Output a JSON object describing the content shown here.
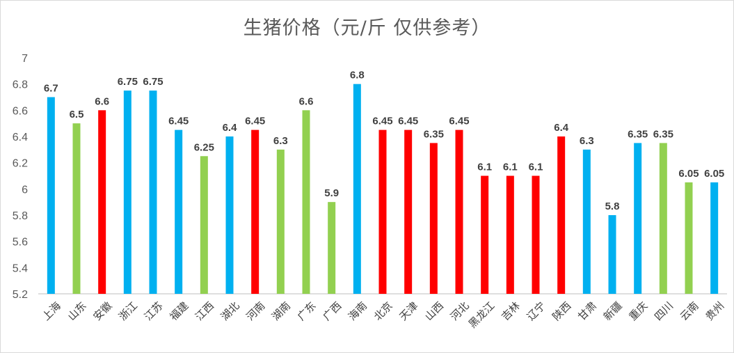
{
  "chart_data": {
    "type": "bar",
    "title": "生猪价格（元/斤 仅供参考）",
    "xlabel": "",
    "ylabel": "",
    "ylim": [
      5.2,
      7
    ],
    "yticks": [
      5.2,
      5.4,
      5.6,
      5.8,
      6,
      6.2,
      6.4,
      6.6,
      6.8,
      7
    ],
    "ytick_labels": [
      "5.2",
      "5.4",
      "5.6",
      "5.8",
      "6",
      "6.2",
      "6.4",
      "6.6",
      "6.8",
      "7"
    ],
    "grid": false,
    "categories": [
      "上海",
      "山东",
      "安徽",
      "浙江",
      "江苏",
      "福建",
      "江西",
      "湖北",
      "河南",
      "湖南",
      "广东",
      "广西",
      "海南",
      "北京",
      "天津",
      "山西",
      "河北",
      "黑龙江",
      "吉林",
      "辽宁",
      "陕西",
      "甘肃",
      "新疆",
      "重庆",
      "四川",
      "云南",
      "贵州"
    ],
    "values": [
      6.7,
      6.5,
      6.6,
      6.75,
      6.75,
      6.45,
      6.25,
      6.4,
      6.45,
      6.3,
      6.6,
      5.9,
      6.8,
      6.45,
      6.45,
      6.35,
      6.45,
      6.1,
      6.1,
      6.1,
      6.4,
      6.3,
      5.8,
      6.35,
      6.35,
      6.05,
      6.05
    ],
    "value_labels": [
      "6.7",
      "6.5",
      "6.6",
      "6.75",
      "6.75",
      "6.45",
      "6.25",
      "6.4",
      "6.45",
      "6.3",
      "6.6",
      "5.9",
      "6.8",
      "6.45",
      "6.45",
      "6.35",
      "6.45",
      "6.1",
      "6.1",
      "6.1",
      "6.4",
      "6.3",
      "5.8",
      "6.35",
      "6.35",
      "6.05",
      "6.05"
    ],
    "bar_colors": [
      "#00b0f0",
      "#92d050",
      "#ff0000",
      "#00b0f0",
      "#00b0f0",
      "#00b0f0",
      "#92d050",
      "#00b0f0",
      "#ff0000",
      "#92d050",
      "#92d050",
      "#92d050",
      "#00b0f0",
      "#ff0000",
      "#ff0000",
      "#ff0000",
      "#ff0000",
      "#ff0000",
      "#ff0000",
      "#ff0000",
      "#ff0000",
      "#00b0f0",
      "#00b0f0",
      "#00b0f0",
      "#92d050",
      "#92d050",
      "#00b0f0"
    ]
  },
  "colors": {
    "axis": "#bfbfbf",
    "text": "#595959",
    "label": "#404040"
  }
}
